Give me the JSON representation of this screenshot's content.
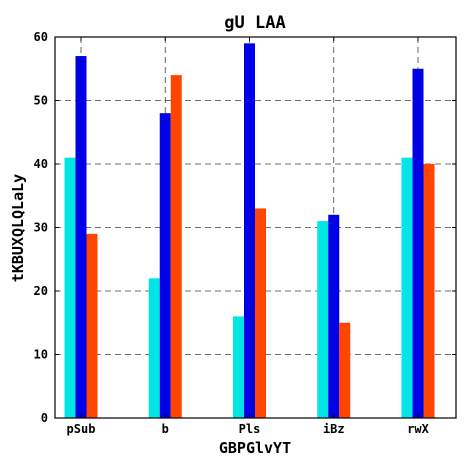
{
  "chart_data": {
    "type": "bar",
    "title": "gU LAA",
    "xlabel": "GBPGlvYT",
    "ylabel": "tKBUXQLQLaLy",
    "categories": [
      "pSub",
      "b",
      "Pls",
      "iBz",
      "rwX"
    ],
    "ylim": [
      0,
      60
    ],
    "yticks": [
      0,
      10,
      20,
      30,
      40,
      50,
      60
    ],
    "grid": true,
    "series": [
      {
        "color": "#00e5e5",
        "values": [
          41,
          22,
          16,
          31,
          41
        ]
      },
      {
        "color": "#0000e6",
        "values": [
          57,
          48,
          59,
          32,
          55
        ]
      },
      {
        "color": "#ff4500",
        "values": [
          29,
          54,
          33,
          15,
          40
        ]
      }
    ]
  }
}
